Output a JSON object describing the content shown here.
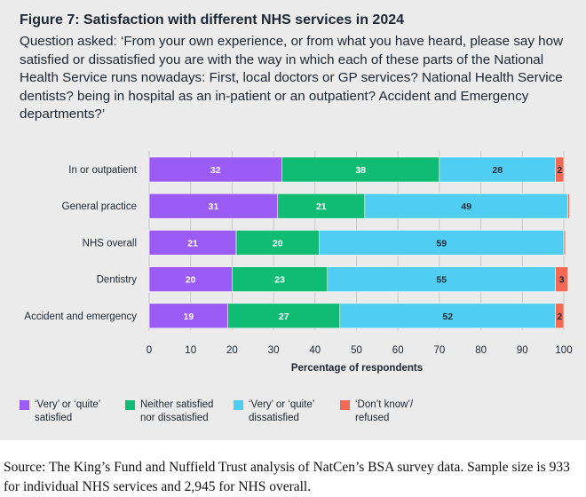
{
  "figure": {
    "title": "Figure 7: Satisfaction with different NHS services in 2024",
    "question": "Question asked: ‘From your own experience, or from what you have heard, please say how satisfied or dissatisfied you are with the way in which each of these parts of the National Health Service runs nowadays: First, local doctors or GP services? National Health Service dentists? being in hospital as an in-patient or an outpatient? Accident and Emergency departments?’"
  },
  "colors": {
    "satisfied": "#9b5cf6",
    "neither": "#10bb74",
    "dissatisfied": "#4fcdf2",
    "dont_know": "#f26a55",
    "background": "#ebebeb"
  },
  "chart_data": {
    "type": "bar",
    "orientation": "horizontal",
    "stacked": true,
    "categories": [
      "In or outpatient",
      "General practice",
      "NHS overall",
      "Dentistry",
      "Accident and emergency"
    ],
    "series": [
      {
        "name": "‘Very’ or ‘quite’ satisfied",
        "key": "satisfied",
        "values": [
          32,
          31,
          21,
          20,
          19
        ],
        "labels": [
          "32",
          "31",
          "21",
          "20",
          "19"
        ]
      },
      {
        "name": "Neither satisfied nor dissatisfied",
        "key": "neither",
        "values": [
          38,
          21,
          20,
          23,
          27
        ],
        "labels": [
          "38",
          "21",
          "20",
          "23",
          "27"
        ]
      },
      {
        "name": "‘Very’ or ‘quite’ dissatisfied",
        "key": "dissatisfied",
        "values": [
          28,
          49,
          59,
          55,
          52
        ],
        "labels": [
          "28",
          "49",
          "59",
          "55",
          "52"
        ]
      },
      {
        "name": "‘Don’t know’/ refused",
        "key": "dont_know",
        "values": [
          2,
          0.4,
          0.4,
          3,
          2
        ],
        "labels": [
          "2",
          "",
          "",
          "3",
          "2"
        ]
      }
    ],
    "xlabel": "Percentage of respondents",
    "xlim": [
      0,
      100
    ],
    "xticks": [
      "0",
      "10",
      "20",
      "30",
      "40",
      "50",
      "60",
      "70",
      "80",
      "90",
      "100"
    ],
    "legend_position": "bottom"
  },
  "legend": [
    {
      "key": "satisfied",
      "line1": "‘Very’ or ‘quite’",
      "line2": "satisfied"
    },
    {
      "key": "neither",
      "line1": "Neither satisfied",
      "line2": "nor dissatisfied"
    },
    {
      "key": "dissatisfied",
      "line1": "‘Very’ or ‘quite’",
      "line2": "dissatisfied"
    },
    {
      "key": "dont_know",
      "line1": "‘Don’t know’/",
      "line2": "refused"
    }
  ],
  "source": "Source: The King’s Fund and Nuffield Trust analysis of NatCen’s BSA survey data. Sample size is 933 for individual NHS services and 2,945 for NHS overall."
}
